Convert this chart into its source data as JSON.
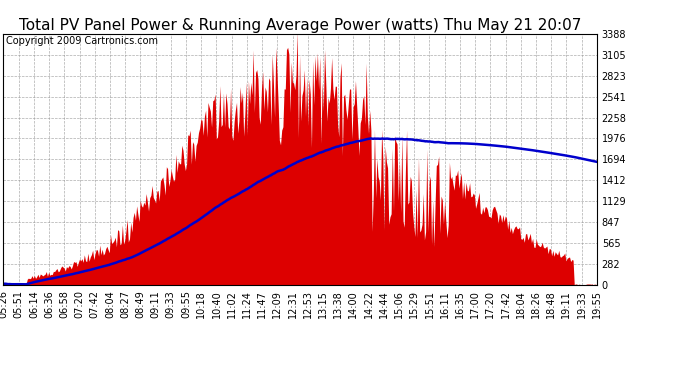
{
  "title": "Total PV Panel Power & Running Average Power (watts) Thu May 21 20:07",
  "copyright": "Copyright 2009 Cartronics.com",
  "y_max": 3387.5,
  "y_min": 0.0,
  "y_ticks": [
    0.0,
    282.3,
    564.6,
    846.9,
    1129.2,
    1411.5,
    1693.7,
    1976.0,
    2258.3,
    2540.6,
    2822.9,
    3105.2,
    3387.5
  ],
  "x_labels": [
    "05:26",
    "05:51",
    "06:14",
    "06:36",
    "06:58",
    "07:20",
    "07:42",
    "08:04",
    "08:27",
    "08:49",
    "09:11",
    "09:33",
    "09:55",
    "10:18",
    "10:40",
    "11:02",
    "11:24",
    "11:47",
    "12:09",
    "12:31",
    "12:53",
    "13:15",
    "13:38",
    "14:00",
    "14:22",
    "14:44",
    "15:06",
    "15:29",
    "15:51",
    "16:11",
    "16:35",
    "17:00",
    "17:20",
    "17:42",
    "18:04",
    "18:26",
    "18:48",
    "19:11",
    "19:33",
    "19:55"
  ],
  "fill_color": "#dd0000",
  "line_color": "#0000cc",
  "bg_color": "#ffffff",
  "grid_color": "#999999",
  "title_fontsize": 11,
  "copyright_fontsize": 7,
  "tick_fontsize": 7,
  "peak_t": 0.48,
  "sigma": 0.2,
  "avg_peak": 1976.0,
  "avg_peak_t": 0.6
}
